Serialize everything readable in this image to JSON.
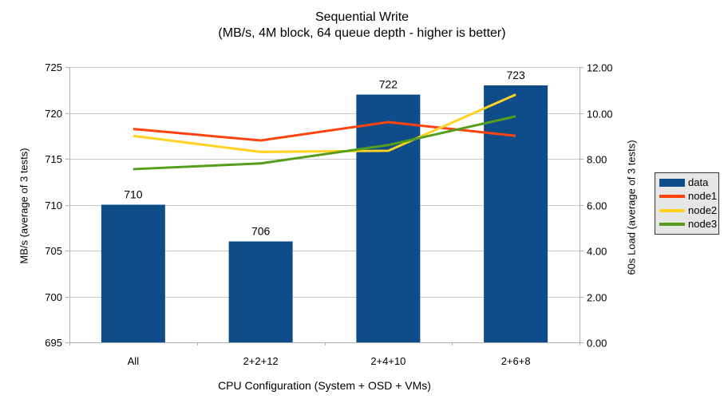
{
  "title": "Sequential Write",
  "subtitle": "(MB/s, 4M block, 64 queue depth - higher is better)",
  "chart_data": {
    "type": "combo-bar-line",
    "categories": [
      "All",
      "2+2+12",
      "2+4+10",
      "2+6+8"
    ],
    "bar_series": {
      "name": "data",
      "axis": "left",
      "color": "#0E4C8A",
      "values": [
        710,
        706,
        722,
        723
      ],
      "labels": [
        "710",
        "706",
        "722",
        "723"
      ]
    },
    "line_series": [
      {
        "name": "node1",
        "axis": "right",
        "color": "#FF420E",
        "values": [
          9.3,
          8.8,
          9.6,
          9.0
        ]
      },
      {
        "name": "node2",
        "axis": "right",
        "color": "#FFD320",
        "values": [
          9.0,
          8.3,
          8.35,
          10.8
        ]
      },
      {
        "name": "node3",
        "axis": "right",
        "color": "#579D1C",
        "values": [
          7.55,
          7.8,
          8.6,
          9.85
        ]
      }
    ],
    "left_axis": {
      "label": "MB/s (average of 3 tests)",
      "min": 695,
      "max": 725,
      "step": 5,
      "ticks": [
        "695",
        "700",
        "705",
        "710",
        "715",
        "720",
        "725"
      ]
    },
    "right_axis": {
      "label": "60s Load (average of 3 tests)",
      "min": 0,
      "max": 12,
      "step": 2,
      "ticks": [
        "0.00",
        "2.00",
        "4.00",
        "6.00",
        "8.00",
        "10.00",
        "12.00"
      ]
    },
    "x_axis": {
      "label": "CPU Configuration (System + OSD + VMs)"
    },
    "legend": {
      "position": "right",
      "entries": [
        {
          "label": "data",
          "type": "bar",
          "color": "#0E4C8A"
        },
        {
          "label": "node1",
          "type": "line",
          "color": "#FF420E"
        },
        {
          "label": "node2",
          "type": "line",
          "color": "#FFD320"
        },
        {
          "label": "node3",
          "type": "line",
          "color": "#579D1C"
        }
      ]
    },
    "grid": true
  },
  "colors": {
    "bar_blue": "#0E4C8A",
    "node1_red": "#FF420E",
    "node2_yellow": "#FFD320",
    "node3_green": "#579D1C",
    "gridline": "#C9C9C9",
    "axis": "#B0B0B0",
    "legend_bg": "#E6E6E6",
    "legend_border": "#333333",
    "text": "#000000"
  }
}
